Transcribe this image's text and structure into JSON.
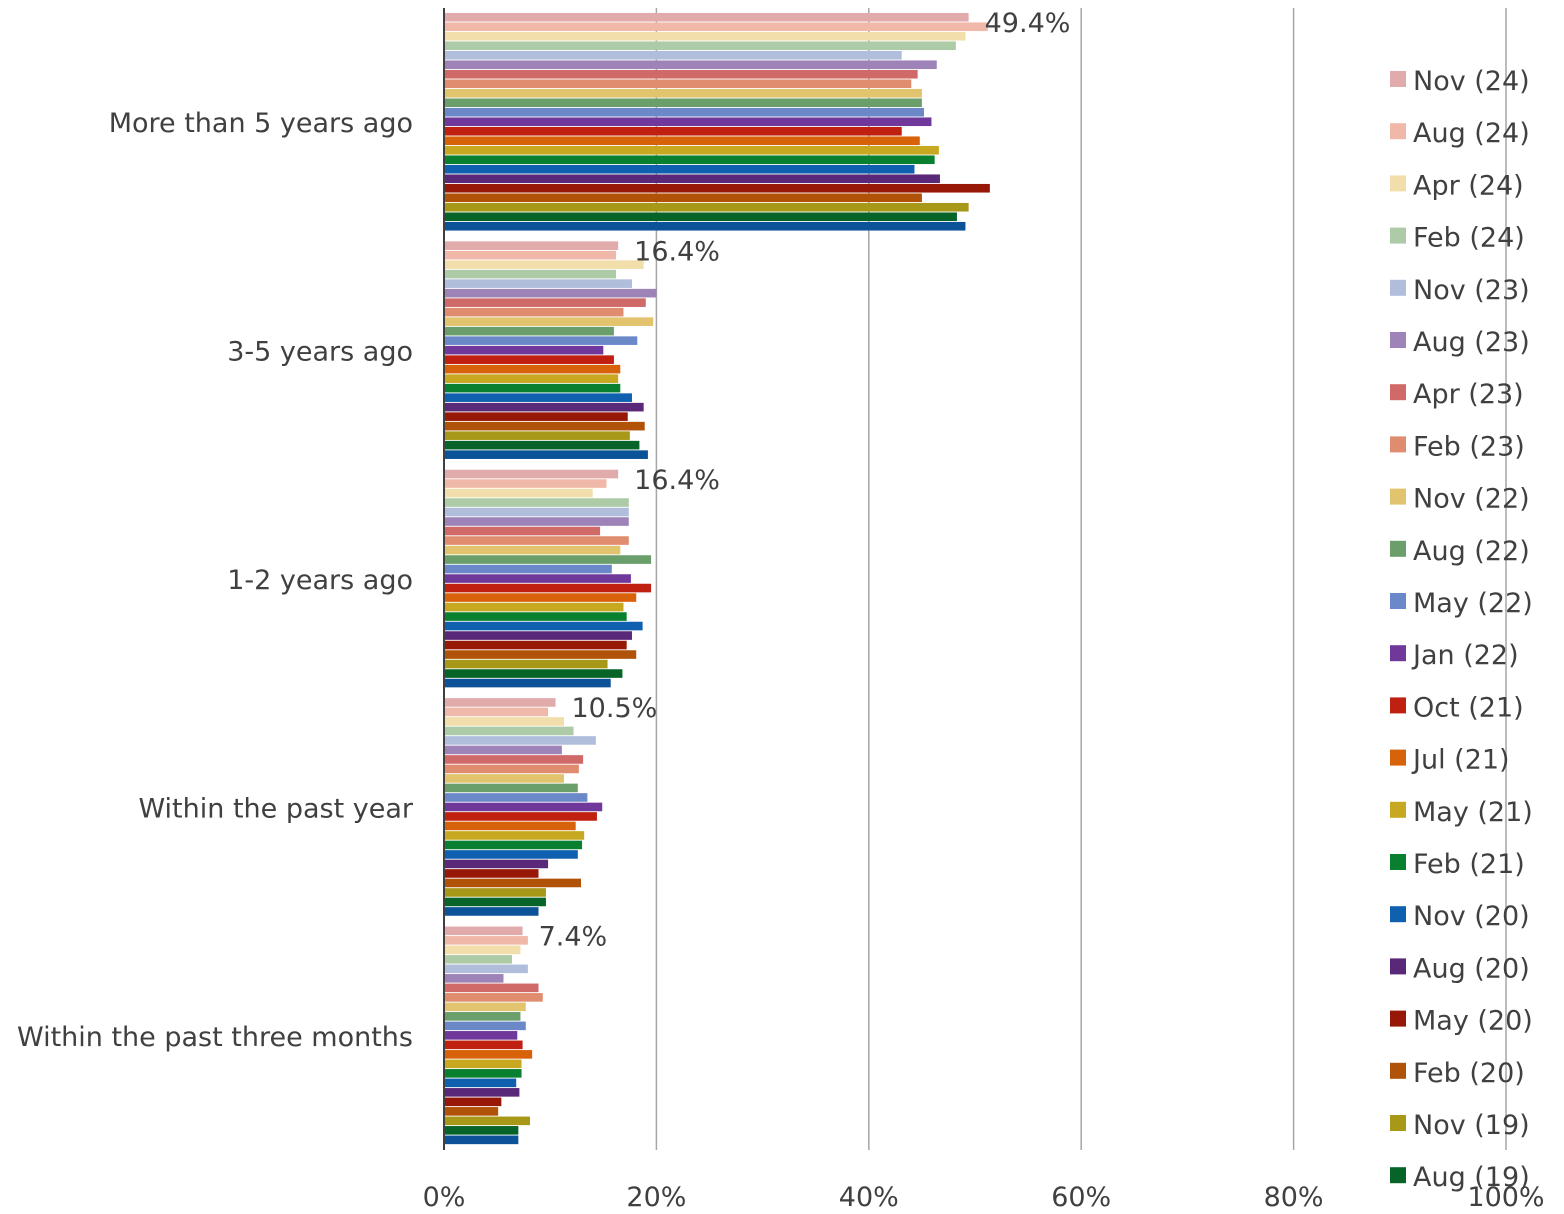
{
  "chart_data": {
    "type": "bar",
    "orientation": "horizontal",
    "title": "",
    "xlabel": "",
    "ylabel": "",
    "xlim": [
      0,
      100
    ],
    "x_ticks": [
      "0%",
      "20%",
      "40%",
      "60%",
      "80%",
      "100%"
    ],
    "x_tick_values": [
      0,
      20,
      40,
      60,
      80,
      100
    ],
    "grid": "vertical",
    "legend_position": "right",
    "categories": [
      "More than 5 years ago",
      "3-5 years ago",
      "1-2 years ago",
      "Within the past year",
      "Within the past three months"
    ],
    "data_labels": [
      "49.4%",
      "16.4%",
      "16.4%",
      "10.5%",
      "7.4%"
    ],
    "series": [
      {
        "name": "Nov (24)",
        "color": "#E2ABAB",
        "values": [
          49.4,
          16.4,
          16.4,
          10.5,
          7.4
        ]
      },
      {
        "name": "Aug (24)",
        "color": "#F0B8A8",
        "values": [
          51.2,
          16.2,
          15.3,
          9.8,
          7.9
        ]
      },
      {
        "name": "Apr (24)",
        "color": "#F2DEAA",
        "values": [
          49.1,
          18.8,
          14.0,
          11.3,
          7.2
        ]
      },
      {
        "name": "Feb (24)",
        "color": "#AECBA8",
        "values": [
          48.2,
          16.2,
          17.4,
          12.2,
          6.4
        ]
      },
      {
        "name": "Nov (23)",
        "color": "#B0BEDC",
        "values": [
          43.1,
          17.7,
          17.4,
          14.3,
          7.9
        ]
      },
      {
        "name": "Aug (23)",
        "color": "#9E83B8",
        "values": [
          46.4,
          20.0,
          17.4,
          11.1,
          5.6
        ]
      },
      {
        "name": "Apr (23)",
        "color": "#D06A68",
        "values": [
          44.6,
          19.0,
          14.7,
          13.1,
          8.9
        ]
      },
      {
        "name": "Feb (23)",
        "color": "#E08C6E",
        "values": [
          44.0,
          16.9,
          17.4,
          12.7,
          9.3
        ]
      },
      {
        "name": "Nov (22)",
        "color": "#E2C46E",
        "values": [
          45.0,
          19.7,
          16.6,
          11.3,
          7.7
        ]
      },
      {
        "name": "Aug (22)",
        "color": "#6A9E6A",
        "values": [
          45.0,
          16.0,
          19.5,
          12.6,
          7.2
        ]
      },
      {
        "name": "May (22)",
        "color": "#6B89C9",
        "values": [
          45.2,
          18.2,
          15.8,
          13.5,
          7.7
        ]
      },
      {
        "name": "Jan (22)",
        "color": "#70389A",
        "values": [
          45.9,
          15.0,
          17.6,
          14.9,
          6.9
        ]
      },
      {
        "name": "Oct (21)",
        "color": "#C02010",
        "values": [
          43.1,
          16.0,
          19.5,
          14.4,
          7.4
        ]
      },
      {
        "name": "Jul (21)",
        "color": "#D8620A",
        "values": [
          44.8,
          16.6,
          18.1,
          12.4,
          8.3
        ]
      },
      {
        "name": "May (21)",
        "color": "#C8A820",
        "values": [
          46.6,
          16.4,
          16.9,
          13.2,
          7.3
        ]
      },
      {
        "name": "Feb (21)",
        "color": "#088030",
        "values": [
          46.2,
          16.6,
          17.2,
          13.0,
          7.3
        ]
      },
      {
        "name": "Nov (20)",
        "color": "#1060B0",
        "values": [
          44.3,
          17.7,
          18.7,
          12.6,
          6.8
        ]
      },
      {
        "name": "Aug (20)",
        "color": "#5A2878",
        "values": [
          46.7,
          18.8,
          17.7,
          9.8,
          7.1
        ]
      },
      {
        "name": "May (20)",
        "color": "#981808",
        "values": [
          51.4,
          17.3,
          17.2,
          8.9,
          5.4
        ]
      },
      {
        "name": "Feb (20)",
        "color": "#B05208",
        "values": [
          45.0,
          18.9,
          18.1,
          12.9,
          5.1
        ]
      },
      {
        "name": "Nov (19)",
        "color": "#A89818",
        "values": [
          49.4,
          17.5,
          15.4,
          9.6,
          8.1
        ]
      },
      {
        "name": "Aug (19)",
        "color": "#066428",
        "values": [
          48.3,
          18.4,
          16.8,
          9.6,
          7.0
        ]
      },
      {
        "name": "",
        "color": "#0B5298",
        "values": [
          49.1,
          19.2,
          15.7,
          8.9,
          7.0
        ]
      }
    ]
  }
}
